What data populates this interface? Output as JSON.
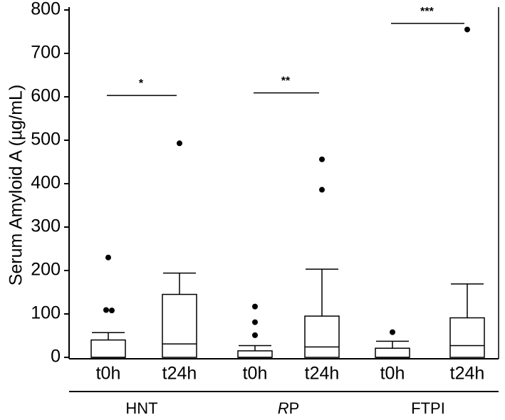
{
  "chart_data": {
    "type": "box",
    "ylabel": "Serum Amyloid A (µg/mL)",
    "ylim": [
      0,
      800
    ],
    "yticks": [
      "0",
      "100",
      "200",
      "300",
      "400",
      "500",
      "600",
      "700",
      "800"
    ],
    "groups": [
      {
        "name": "HNT",
        "boxes": [
          {
            "label": "t0h",
            "min": 0,
            "q1": 0,
            "median": 0,
            "q3": 40,
            "max": 57,
            "outliers": [
              230,
              109,
              108
            ]
          },
          {
            "label": "t24h",
            "min": 0,
            "q1": 0,
            "median": 31,
            "q3": 145,
            "max": 194,
            "outliers": [
              493
            ]
          }
        ],
        "significance": {
          "label": "*",
          "y": 603
        }
      },
      {
        "name": "RP",
        "name_prefix_italic": "R",
        "name_suffix": "P",
        "boxes": [
          {
            "label": "t0h",
            "min": 0,
            "q1": 0,
            "median": 0,
            "q3": 15,
            "max": 27,
            "outliers": [
              117,
              81,
              51
            ]
          },
          {
            "label": "t24h",
            "min": 0,
            "q1": 0,
            "median": 24,
            "q3": 95,
            "max": 203,
            "outliers": [
              456,
              386
            ]
          }
        ],
        "significance": {
          "label": "**",
          "y": 609
        }
      },
      {
        "name": "FTPI",
        "boxes": [
          {
            "label": "t0h",
            "min": 0,
            "q1": 0,
            "median": 0,
            "q3": 21,
            "max": 37,
            "outliers": [
              58
            ]
          },
          {
            "label": "t24h",
            "min": 0,
            "q1": 0,
            "median": 27,
            "q3": 91,
            "max": 169,
            "outliers": [
              755
            ]
          }
        ],
        "significance": {
          "label": "***",
          "y": 769
        }
      }
    ]
  }
}
